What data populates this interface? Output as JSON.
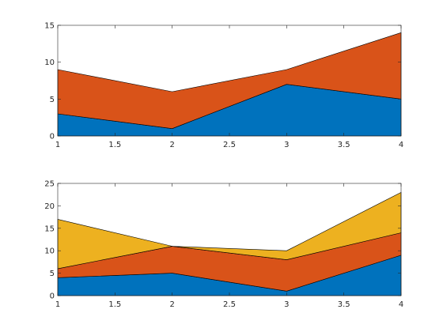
{
  "chart_data": [
    {
      "type": "area",
      "stacked": true,
      "x": [
        1,
        2,
        3,
        4
      ],
      "series": [
        {
          "values": [
            3,
            1,
            7,
            5
          ],
          "color": "#0072BD"
        },
        {
          "values": [
            6,
            5,
            2,
            9
          ],
          "color": "#D95319"
        }
      ],
      "xlim": [
        1,
        4
      ],
      "ylim": [
        0,
        15
      ],
      "xticks": [
        "1",
        "1.5",
        "2",
        "2.5",
        "3",
        "3.5",
        "4"
      ],
      "yticks": [
        "0",
        "5",
        "10",
        "15"
      ],
      "grid": false,
      "box": true
    },
    {
      "type": "area",
      "stacked": true,
      "x": [
        1,
        2,
        3,
        4
      ],
      "series": [
        {
          "values": [
            4,
            5,
            1,
            9
          ],
          "color": "#0072BD"
        },
        {
          "values": [
            2,
            6,
            7,
            5
          ],
          "color": "#D95319"
        },
        {
          "values": [
            11,
            0,
            2,
            9
          ],
          "color": "#EDB120"
        }
      ],
      "xlim": [
        1,
        4
      ],
      "ylim": [
        0,
        25
      ],
      "xticks": [
        "1",
        "1.5",
        "2",
        "2.5",
        "3",
        "3.5",
        "4"
      ],
      "yticks": [
        "0",
        "5",
        "10",
        "15",
        "20",
        "25"
      ],
      "grid": false,
      "box": true
    }
  ]
}
